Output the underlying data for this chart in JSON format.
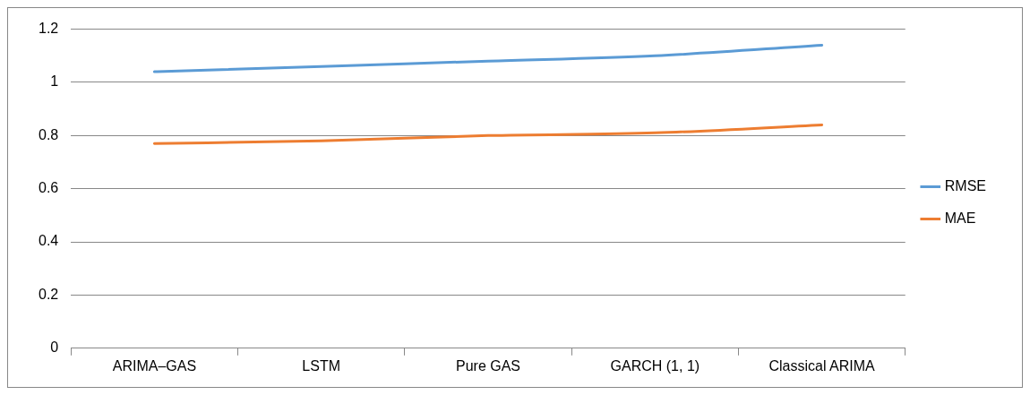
{
  "chart_data": {
    "type": "line",
    "categories": [
      "ARIMA–GAS",
      "LSTM",
      "Pure GAS",
      "GARCH (1, 1)",
      "Classical ARIMA"
    ],
    "series": [
      {
        "name": "RMSE",
        "color": "#5b9bd5",
        "values": [
          1.04,
          1.06,
          1.08,
          1.1,
          1.14
        ]
      },
      {
        "name": "MAE",
        "color": "#ed7d31",
        "values": [
          0.77,
          0.78,
          0.8,
          0.81,
          0.84
        ]
      }
    ],
    "ylim": [
      0,
      1.2
    ],
    "yticks": [
      0,
      0.2,
      0.4,
      0.6,
      0.8,
      1,
      1.2
    ],
    "grid": "y",
    "legend": "right",
    "marker": "none",
    "line_style": "solid"
  }
}
